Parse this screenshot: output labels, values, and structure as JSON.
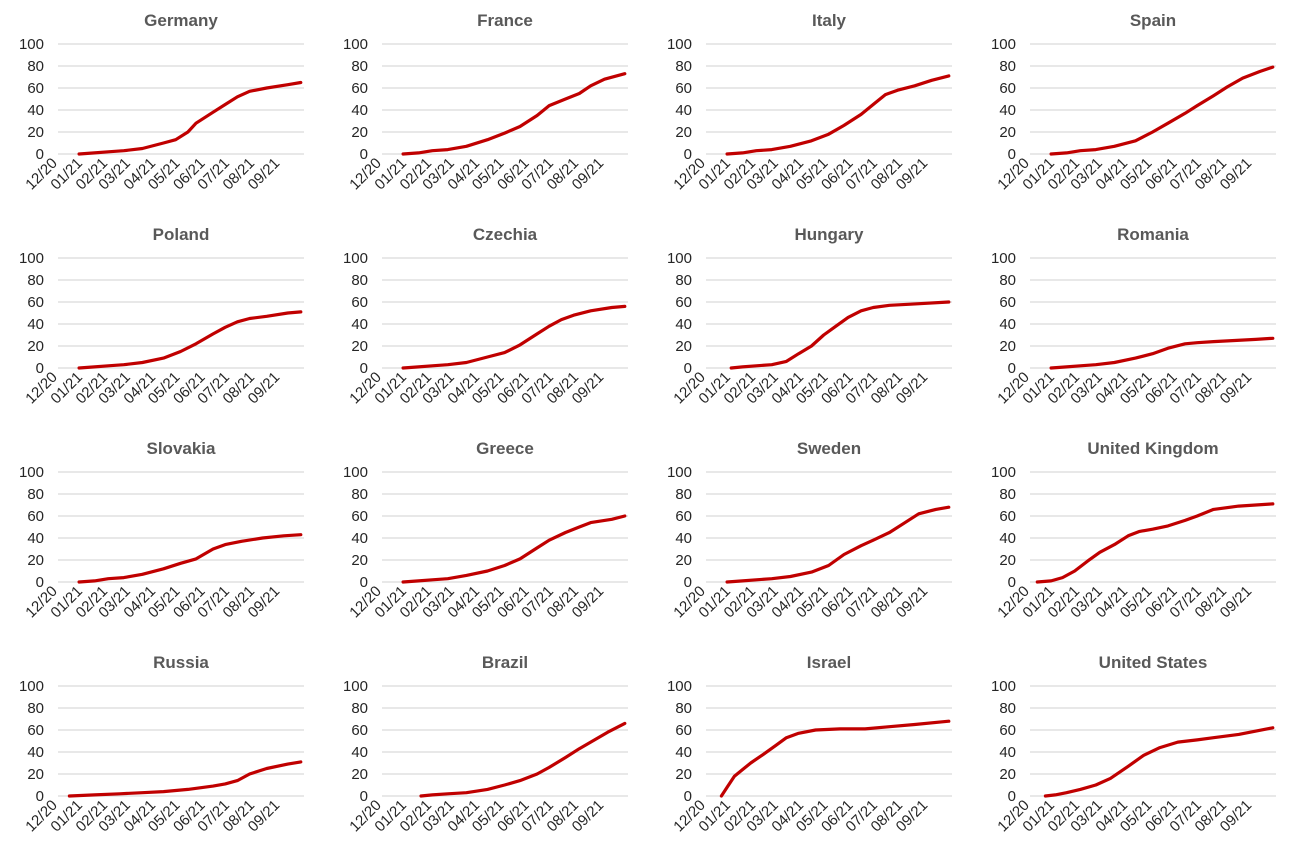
{
  "style": {
    "line_color": "#c00000",
    "grid_color": "#d9d9d9",
    "text_color": "#262626",
    "title_color": "#595959"
  },
  "chart_data": [
    {
      "type": "line",
      "title": "Germany",
      "ylim": [
        0,
        100
      ],
      "yticks": [
        0,
        20,
        40,
        60,
        80,
        100
      ],
      "x_labels": [
        "12/20",
        "01/21",
        "02/21",
        "03/21",
        "04/21",
        "05/21",
        "06/21",
        "07/21",
        "08/21",
        "09/21"
      ],
      "grid": true,
      "legend": "none",
      "series": [
        {
          "x": [
            "2020-12-27",
            "2021-01-15",
            "2021-02-01",
            "2021-02-20",
            "2021-03-15",
            "2021-04-10",
            "2021-04-25",
            "2021-05-10",
            "2021-05-20",
            "2021-06-10",
            "2021-06-25",
            "2021-07-10",
            "2021-07-25",
            "2021-08-15",
            "2021-09-10",
            "2021-09-26"
          ],
          "y": [
            0,
            1,
            2,
            3,
            5,
            10,
            13,
            20,
            28,
            38,
            45,
            52,
            57,
            60,
            63,
            65
          ]
        }
      ]
    },
    {
      "type": "line",
      "title": "France",
      "ylim": [
        0,
        100
      ],
      "yticks": [
        0,
        20,
        40,
        60,
        80,
        100
      ],
      "x_labels": [
        "12/20",
        "01/21",
        "02/21",
        "03/21",
        "04/21",
        "05/21",
        "06/21",
        "07/21",
        "08/21",
        "09/21"
      ],
      "grid": true,
      "legend": "none",
      "series": [
        {
          "x": [
            "2020-12-27",
            "2021-01-15",
            "2021-02-01",
            "2021-02-20",
            "2021-03-15",
            "2021-04-10",
            "2021-05-01",
            "2021-05-20",
            "2021-06-10",
            "2021-06-25",
            "2021-07-15",
            "2021-08-01",
            "2021-08-15",
            "2021-09-01",
            "2021-09-26"
          ],
          "y": [
            0,
            1,
            3,
            4,
            7,
            13,
            19,
            25,
            35,
            44,
            50,
            55,
            62,
            68,
            73
          ]
        }
      ]
    },
    {
      "type": "line",
      "title": "Italy",
      "ylim": [
        0,
        100
      ],
      "yticks": [
        0,
        20,
        40,
        60,
        80,
        100
      ],
      "x_labels": [
        "12/20",
        "01/21",
        "02/21",
        "03/21",
        "04/21",
        "05/21",
        "06/21",
        "07/21",
        "08/21",
        "09/21"
      ],
      "grid": true,
      "legend": "none",
      "series": [
        {
          "x": [
            "2020-12-27",
            "2021-01-15",
            "2021-02-01",
            "2021-02-20",
            "2021-03-15",
            "2021-04-10",
            "2021-05-01",
            "2021-05-20",
            "2021-06-10",
            "2021-06-25",
            "2021-07-10",
            "2021-07-25",
            "2021-08-15",
            "2021-09-05",
            "2021-09-26"
          ],
          "y": [
            0,
            1,
            3,
            4,
            7,
            12,
            18,
            26,
            36,
            45,
            54,
            58,
            62,
            67,
            71
          ]
        }
      ]
    },
    {
      "type": "line",
      "title": "Spain",
      "ylim": [
        0,
        100
      ],
      "yticks": [
        0,
        20,
        40,
        60,
        80,
        100
      ],
      "x_labels": [
        "12/20",
        "01/21",
        "02/21",
        "03/21",
        "04/21",
        "05/21",
        "06/21",
        "07/21",
        "08/21",
        "09/21"
      ],
      "grid": true,
      "legend": "none",
      "series": [
        {
          "x": [
            "2020-12-27",
            "2021-01-15",
            "2021-02-01",
            "2021-02-20",
            "2021-03-15",
            "2021-04-10",
            "2021-05-01",
            "2021-05-20",
            "2021-06-10",
            "2021-06-25",
            "2021-07-15",
            "2021-08-01",
            "2021-08-20",
            "2021-09-10",
            "2021-09-26"
          ],
          "y": [
            0,
            1,
            3,
            4,
            7,
            12,
            20,
            28,
            37,
            44,
            53,
            61,
            69,
            75,
            79
          ]
        }
      ]
    },
    {
      "type": "line",
      "title": "Poland",
      "ylim": [
        0,
        100
      ],
      "yticks": [
        0,
        20,
        40,
        60,
        80,
        100
      ],
      "x_labels": [
        "12/20",
        "01/21",
        "02/21",
        "03/21",
        "04/21",
        "05/21",
        "06/21",
        "07/21",
        "08/21",
        "09/21"
      ],
      "grid": true,
      "legend": "none",
      "series": [
        {
          "x": [
            "2020-12-27",
            "2021-01-15",
            "2021-02-01",
            "2021-02-20",
            "2021-03-15",
            "2021-04-10",
            "2021-05-01",
            "2021-05-20",
            "2021-06-10",
            "2021-06-25",
            "2021-07-10",
            "2021-07-25",
            "2021-08-15",
            "2021-09-10",
            "2021-09-26"
          ],
          "y": [
            0,
            1,
            2,
            3,
            5,
            9,
            15,
            22,
            31,
            37,
            42,
            45,
            47,
            50,
            51
          ]
        }
      ]
    },
    {
      "type": "line",
      "title": "Czechia",
      "ylim": [
        0,
        100
      ],
      "yticks": [
        0,
        20,
        40,
        60,
        80,
        100
      ],
      "x_labels": [
        "12/20",
        "01/21",
        "02/21",
        "03/21",
        "04/21",
        "05/21",
        "06/21",
        "07/21",
        "08/21",
        "09/21"
      ],
      "grid": true,
      "legend": "none",
      "series": [
        {
          "x": [
            "2020-12-27",
            "2021-01-15",
            "2021-02-01",
            "2021-02-20",
            "2021-03-15",
            "2021-04-10",
            "2021-05-01",
            "2021-05-20",
            "2021-06-10",
            "2021-06-25",
            "2021-07-10",
            "2021-07-25",
            "2021-08-15",
            "2021-09-10",
            "2021-09-26"
          ],
          "y": [
            0,
            1,
            2,
            3,
            5,
            10,
            14,
            21,
            31,
            38,
            44,
            48,
            52,
            55,
            56
          ]
        }
      ]
    },
    {
      "type": "line",
      "title": "Hungary",
      "ylim": [
        0,
        100
      ],
      "yticks": [
        0,
        20,
        40,
        60,
        80,
        100
      ],
      "x_labels": [
        "12/20",
        "01/21",
        "02/21",
        "03/21",
        "04/21",
        "05/21",
        "06/21",
        "07/21",
        "08/21",
        "09/21"
      ],
      "grid": true,
      "legend": "none",
      "series": [
        {
          "x": [
            "2021-01-01",
            "2021-01-15",
            "2021-02-01",
            "2021-02-20",
            "2021-03-10",
            "2021-03-25",
            "2021-04-10",
            "2021-04-25",
            "2021-05-10",
            "2021-05-25",
            "2021-06-10",
            "2021-06-25",
            "2021-07-15",
            "2021-08-10",
            "2021-09-26"
          ],
          "y": [
            0,
            1,
            2,
            3,
            6,
            13,
            20,
            30,
            38,
            46,
            52,
            55,
            57,
            58,
            60
          ]
        }
      ]
    },
    {
      "type": "line",
      "title": "Romania",
      "ylim": [
        0,
        100
      ],
      "yticks": [
        0,
        20,
        40,
        60,
        80,
        100
      ],
      "x_labels": [
        "12/20",
        "01/21",
        "02/21",
        "03/21",
        "04/21",
        "05/21",
        "06/21",
        "07/21",
        "08/21",
        "09/21"
      ],
      "grid": true,
      "legend": "none",
      "series": [
        {
          "x": [
            "2020-12-27",
            "2021-01-15",
            "2021-02-01",
            "2021-02-20",
            "2021-03-15",
            "2021-04-10",
            "2021-05-01",
            "2021-05-20",
            "2021-06-10",
            "2021-06-25",
            "2021-07-15",
            "2021-08-10",
            "2021-09-05",
            "2021-09-26"
          ],
          "y": [
            0,
            1,
            2,
            3,
            5,
            9,
            13,
            18,
            22,
            23,
            24,
            25,
            26,
            27
          ]
        }
      ]
    },
    {
      "type": "line",
      "title": "Slovakia",
      "ylim": [
        0,
        100
      ],
      "yticks": [
        0,
        20,
        40,
        60,
        80,
        100
      ],
      "x_labels": [
        "12/20",
        "01/21",
        "02/21",
        "03/21",
        "04/21",
        "05/21",
        "06/21",
        "07/21",
        "08/21",
        "09/21"
      ],
      "grid": true,
      "legend": "none",
      "series": [
        {
          "x": [
            "2020-12-27",
            "2021-01-15",
            "2021-02-01",
            "2021-02-20",
            "2021-03-15",
            "2021-04-10",
            "2021-05-01",
            "2021-05-20",
            "2021-06-10",
            "2021-06-25",
            "2021-07-15",
            "2021-08-10",
            "2021-09-05",
            "2021-09-26"
          ],
          "y": [
            0,
            1,
            3,
            4,
            7,
            12,
            17,
            21,
            30,
            34,
            37,
            40,
            42,
            43
          ]
        }
      ]
    },
    {
      "type": "line",
      "title": "Greece",
      "ylim": [
        0,
        100
      ],
      "yticks": [
        0,
        20,
        40,
        60,
        80,
        100
      ],
      "x_labels": [
        "12/20",
        "01/21",
        "02/21",
        "03/21",
        "04/21",
        "05/21",
        "06/21",
        "07/21",
        "08/21",
        "09/21"
      ],
      "grid": true,
      "legend": "none",
      "series": [
        {
          "x": [
            "2020-12-27",
            "2021-01-15",
            "2021-02-01",
            "2021-02-20",
            "2021-03-15",
            "2021-04-10",
            "2021-05-01",
            "2021-05-20",
            "2021-06-10",
            "2021-06-25",
            "2021-07-15",
            "2021-08-01",
            "2021-08-15",
            "2021-09-10",
            "2021-09-26"
          ],
          "y": [
            0,
            1,
            2,
            3,
            6,
            10,
            15,
            21,
            31,
            38,
            45,
            50,
            54,
            57,
            60
          ]
        }
      ]
    },
    {
      "type": "line",
      "title": "Sweden",
      "ylim": [
        0,
        100
      ],
      "yticks": [
        0,
        20,
        40,
        60,
        80,
        100
      ],
      "x_labels": [
        "12/20",
        "01/21",
        "02/21",
        "03/21",
        "04/21",
        "05/21",
        "06/21",
        "07/21",
        "08/21",
        "09/21"
      ],
      "grid": true,
      "legend": "none",
      "series": [
        {
          "x": [
            "2020-12-27",
            "2021-01-15",
            "2021-02-01",
            "2021-02-20",
            "2021-03-15",
            "2021-04-10",
            "2021-05-01",
            "2021-05-20",
            "2021-06-10",
            "2021-06-25",
            "2021-07-15",
            "2021-08-01",
            "2021-08-20",
            "2021-09-10",
            "2021-09-26"
          ],
          "y": [
            0,
            1,
            2,
            3,
            5,
            9,
            15,
            25,
            33,
            38,
            45,
            53,
            62,
            66,
            68
          ]
        }
      ]
    },
    {
      "type": "line",
      "title": "United Kingdom",
      "ylim": [
        0,
        100
      ],
      "yticks": [
        0,
        20,
        40,
        60,
        80,
        100
      ],
      "x_labels": [
        "12/20",
        "01/21",
        "02/21",
        "03/21",
        "04/21",
        "05/21",
        "06/21",
        "07/21",
        "08/21",
        "09/21"
      ],
      "grid": true,
      "legend": "none",
      "series": [
        {
          "x": [
            "2020-12-10",
            "2020-12-27",
            "2021-01-10",
            "2021-01-25",
            "2021-02-10",
            "2021-02-25",
            "2021-03-15",
            "2021-04-01",
            "2021-04-15",
            "2021-05-01",
            "2021-05-20",
            "2021-06-10",
            "2021-06-25",
            "2021-07-15",
            "2021-08-15",
            "2021-09-26"
          ],
          "y": [
            0,
            1,
            4,
            10,
            19,
            27,
            34,
            42,
            46,
            48,
            51,
            56,
            60,
            66,
            69,
            71
          ]
        }
      ]
    },
    {
      "type": "line",
      "title": "Russia",
      "ylim": [
        0,
        100
      ],
      "yticks": [
        0,
        20,
        40,
        60,
        80,
        100
      ],
      "x_labels": [
        "12/20",
        "01/21",
        "02/21",
        "03/21",
        "04/21",
        "05/21",
        "06/21",
        "07/21",
        "08/21",
        "09/21"
      ],
      "grid": true,
      "legend": "none",
      "series": [
        {
          "x": [
            "2020-12-15",
            "2021-01-15",
            "2021-02-15",
            "2021-03-15",
            "2021-04-10",
            "2021-05-10",
            "2021-06-10",
            "2021-06-25",
            "2021-07-10",
            "2021-07-25",
            "2021-08-15",
            "2021-09-10",
            "2021-09-26"
          ],
          "y": [
            0,
            1,
            2,
            3,
            4,
            6,
            9,
            11,
            14,
            20,
            25,
            29,
            31
          ]
        }
      ]
    },
    {
      "type": "line",
      "title": "Brazil",
      "ylim": [
        0,
        100
      ],
      "yticks": [
        0,
        20,
        40,
        60,
        80,
        100
      ],
      "x_labels": [
        "12/20",
        "01/21",
        "02/21",
        "03/21",
        "04/21",
        "05/21",
        "06/21",
        "07/21",
        "08/21",
        "09/21"
      ],
      "grid": true,
      "legend": "none",
      "series": [
        {
          "x": [
            "2021-01-18",
            "2021-02-01",
            "2021-02-20",
            "2021-03-15",
            "2021-04-10",
            "2021-05-01",
            "2021-05-20",
            "2021-06-10",
            "2021-06-25",
            "2021-07-15",
            "2021-08-01",
            "2021-08-15",
            "2021-09-05",
            "2021-09-26"
          ],
          "y": [
            0,
            1,
            2,
            3,
            6,
            10,
            14,
            20,
            26,
            35,
            43,
            49,
            58,
            66
          ]
        }
      ]
    },
    {
      "type": "line",
      "title": "Israel",
      "ylim": [
        0,
        100
      ],
      "yticks": [
        0,
        20,
        40,
        60,
        80,
        100
      ],
      "x_labels": [
        "12/20",
        "01/21",
        "02/21",
        "03/21",
        "04/21",
        "05/21",
        "06/21",
        "07/21",
        "08/21",
        "09/21"
      ],
      "grid": true,
      "legend": "none",
      "series": [
        {
          "x": [
            "2020-12-20",
            "2020-12-27",
            "2021-01-05",
            "2021-01-15",
            "2021-01-25",
            "2021-02-10",
            "2021-02-25",
            "2021-03-10",
            "2021-03-25",
            "2021-04-15",
            "2021-05-15",
            "2021-06-15",
            "2021-07-15",
            "2021-08-15",
            "2021-09-26"
          ],
          "y": [
            0,
            8,
            18,
            24,
            30,
            38,
            46,
            53,
            57,
            60,
            61,
            61,
            63,
            65,
            68
          ]
        }
      ]
    },
    {
      "type": "line",
      "title": "United States",
      "ylim": [
        0,
        100
      ],
      "yticks": [
        0,
        20,
        40,
        60,
        80,
        100
      ],
      "x_labels": [
        "12/20",
        "01/21",
        "02/21",
        "03/21",
        "04/21",
        "05/21",
        "06/21",
        "07/21",
        "08/21",
        "09/21"
      ],
      "grid": true,
      "legend": "none",
      "series": [
        {
          "x": [
            "2020-12-20",
            "2021-01-01",
            "2021-01-15",
            "2021-02-01",
            "2021-02-20",
            "2021-03-10",
            "2021-04-01",
            "2021-04-20",
            "2021-05-10",
            "2021-06-01",
            "2021-06-25",
            "2021-07-15",
            "2021-08-15",
            "2021-09-26"
          ],
          "y": [
            0,
            1,
            3,
            6,
            10,
            16,
            27,
            37,
            44,
            49,
            51,
            53,
            56,
            62
          ]
        }
      ]
    }
  ]
}
